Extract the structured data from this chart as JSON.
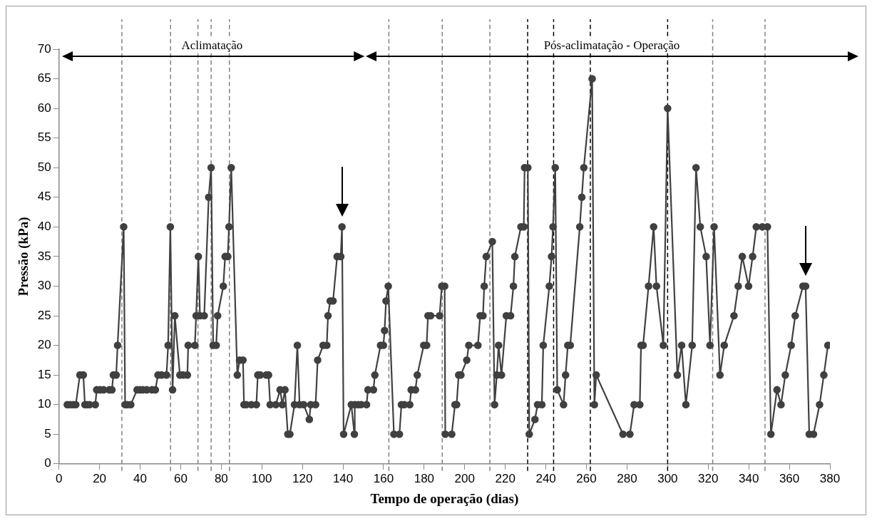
{
  "chart_data": {
    "type": "line",
    "xlabel": "Tempo de operação (dias)",
    "ylabel": "Pressão (kPa)",
    "x": [
      4.1,
      5.5,
      6.9,
      8.3,
      10.3,
      12,
      12.8,
      13.8,
      15.1,
      17.9,
      18.6,
      20.2,
      22,
      24.8,
      26.1,
      26.8,
      28.2,
      28.9,
      31.9,
      32.6,
      33.7,
      35.4,
      38.5,
      39.9,
      41.3,
      43.3,
      45.8,
      47.5,
      48.8,
      50.6,
      53,
      53.8,
      54.9,
      56,
      57.1,
      59.6,
      61.2,
      63.3,
      63.7,
      67,
      67.6,
      68.7,
      69.5,
      71.6,
      73.8,
      75,
      76,
      77.5,
      78.2,
      81,
      81.9,
      83.2,
      83.8,
      84.9,
      87.9,
      89,
      90.7,
      91.2,
      92.3,
      94.8,
      97.3,
      98,
      99.2,
      102.2,
      103.3,
      104.1,
      106.9,
      109,
      110.1,
      111.4,
      112.8,
      113.8,
      116.1,
      117.5,
      118.6,
      120.6,
      123.4,
      124.1,
      126.5,
      127.5,
      130.2,
      132,
      132.6,
      133.7,
      135.1,
      137.1,
      138.9,
      139.5,
      140.3,
      144.1,
      145.6,
      145.8,
      147.5,
      148.9,
      151.6,
      152.3,
      155,
      155.7,
      158.5,
      159.9,
      160.5,
      161.2,
      162.3,
      165.1,
      167.8,
      168.8,
      170.2,
      172.9,
      173.6,
      175.7,
      176.6,
      179.8,
      181.2,
      181.9,
      183.2,
      187.6,
      188.7,
      190.1,
      190.4,
      193.6,
      195.2,
      196,
      197,
      198.1,
      201,
      202,
      206.5,
      207.6,
      209,
      209.6,
      210.6,
      213.6,
      214.7,
      215.8,
      216.7,
      218.1,
      220.5,
      222.6,
      224,
      224.7,
      227.7,
      229.1,
      229.5,
      231.1,
      231.8,
      234.6,
      235.9,
      238,
      238.7,
      241.7,
      242.8,
      243.5,
      244.6,
      245.6,
      248.7,
      249.7,
      250.8,
      252,
      256.7,
      257.7,
      258.7,
      262.8,
      263.9,
      264.8,
      278,
      281.4,
      283.5,
      286.3,
      286.9,
      287.9,
      290.6,
      293.1,
      294.5,
      297.9,
      300,
      304.8,
      306.9,
      309,
      312.1,
      314,
      316.1,
      319,
      320.9,
      322.9,
      325.8,
      327.9,
      332.7,
      334.8,
      336.8,
      339.9,
      341.9,
      343.7,
      346.7,
      349.2,
      350.9,
      353.9,
      355.9,
      358,
      360.9,
      362.9,
      366.7,
      368,
      369.8,
      371.9,
      374.9,
      377,
      379
    ],
    "series": [
      {
        "color": "#404040",
        "values": [
          10,
          10,
          10,
          10,
          15,
          15,
          10,
          10,
          10,
          10,
          12.5,
          12.5,
          12.5,
          12.5,
          12.5,
          15,
          15,
          20,
          40,
          10,
          10,
          10,
          12.5,
          12.5,
          12.5,
          12.5,
          12.5,
          12.5,
          15,
          15,
          15,
          20,
          40,
          12.5,
          25,
          15,
          15,
          15,
          20,
          20,
          25,
          35,
          25,
          25,
          45,
          50,
          20,
          20,
          25,
          30,
          35,
          35,
          40,
          50,
          15,
          17.5,
          17.5,
          10,
          10,
          10,
          10,
          15,
          15,
          15,
          15,
          10,
          10,
          12.5,
          10,
          12.5,
          5,
          5,
          10,
          20,
          10,
          10,
          7.5,
          10,
          10,
          17.5,
          20,
          20,
          25,
          27.5,
          27.5,
          35,
          35,
          40,
          5,
          10,
          5,
          10,
          10,
          10,
          10,
          12.5,
          12.5,
          15,
          20,
          20,
          22.5,
          27.5,
          30,
          5,
          5,
          10,
          10,
          10,
          12.5,
          12.5,
          15,
          20,
          20,
          25,
          25,
          25,
          30,
          30,
          5,
          5,
          10,
          10,
          15,
          15,
          17.5,
          20,
          20,
          25,
          25,
          30,
          35,
          37.5,
          10,
          15,
          20,
          15,
          25,
          25,
          30,
          35,
          40,
          40,
          50,
          50,
          5,
          7.5,
          10,
          10,
          20,
          30,
          35,
          40,
          50,
          12.5,
          10,
          15,
          20,
          20,
          40,
          45,
          50,
          65,
          10,
          15,
          5,
          5,
          10,
          10,
          20,
          20,
          30,
          40,
          30,
          20,
          60,
          15,
          20,
          10,
          20,
          50,
          40,
          35,
          20,
          40,
          15,
          20,
          25,
          30,
          35,
          30,
          35,
          40,
          40,
          40,
          5,
          12.5,
          10,
          15,
          20,
          25,
          30,
          30,
          5,
          5,
          10,
          15,
          20
        ]
      }
    ],
    "xlim": [
      0,
      380
    ],
    "xticks": [
      0,
      20,
      40,
      60,
      80,
      100,
      120,
      140,
      160,
      180,
      200,
      220,
      240,
      260,
      280,
      300,
      320,
      340,
      360,
      380
    ],
    "ylim": [
      0,
      70
    ],
    "yticks": [
      0,
      5,
      10,
      15,
      20,
      25,
      30,
      35,
      40,
      45,
      50,
      55,
      60,
      65,
      70
    ],
    "grid": false,
    "legend": false,
    "marker": "circle",
    "line_style": "solid",
    "annotations": [
      "Aclimatação",
      "Pós-aclimatação - Operação"
    ],
    "ref_lines": [
      {
        "axis": "x",
        "value": 31,
        "color": "#808080",
        "line_style": "dashed"
      },
      {
        "axis": "x",
        "value": 55,
        "color": "#808080",
        "line_style": "dashed"
      },
      {
        "axis": "x",
        "value": 68.5,
        "color": "#808080",
        "line_style": "dashed"
      },
      {
        "axis": "x",
        "value": 75,
        "color": "#808080",
        "line_style": "dashed"
      },
      {
        "axis": "x",
        "value": 84,
        "color": "#808080",
        "line_style": "dashed"
      },
      {
        "axis": "x",
        "value": 162.6,
        "color": "#808080",
        "line_style": "dashed"
      },
      {
        "axis": "x",
        "value": 188.9,
        "color": "#808080",
        "line_style": "dashed"
      },
      {
        "axis": "x",
        "value": 212.4,
        "color": "#808080",
        "line_style": "dashed"
      },
      {
        "axis": "x",
        "value": 231,
        "color": "#000000",
        "line_style": "dashed"
      },
      {
        "axis": "x",
        "value": 243.8,
        "color": "#000000",
        "line_style": "dashed"
      },
      {
        "axis": "x",
        "value": 261.9,
        "color": "#000000",
        "line_style": "dashed"
      },
      {
        "axis": "x",
        "value": 300,
        "color": "#000000",
        "line_style": "dashed"
      },
      {
        "axis": "x",
        "value": 322.2,
        "color": "#808080",
        "line_style": "dashed"
      },
      {
        "axis": "x",
        "value": 348,
        "color": "#808080",
        "line_style": "dashed"
      }
    ]
  }
}
